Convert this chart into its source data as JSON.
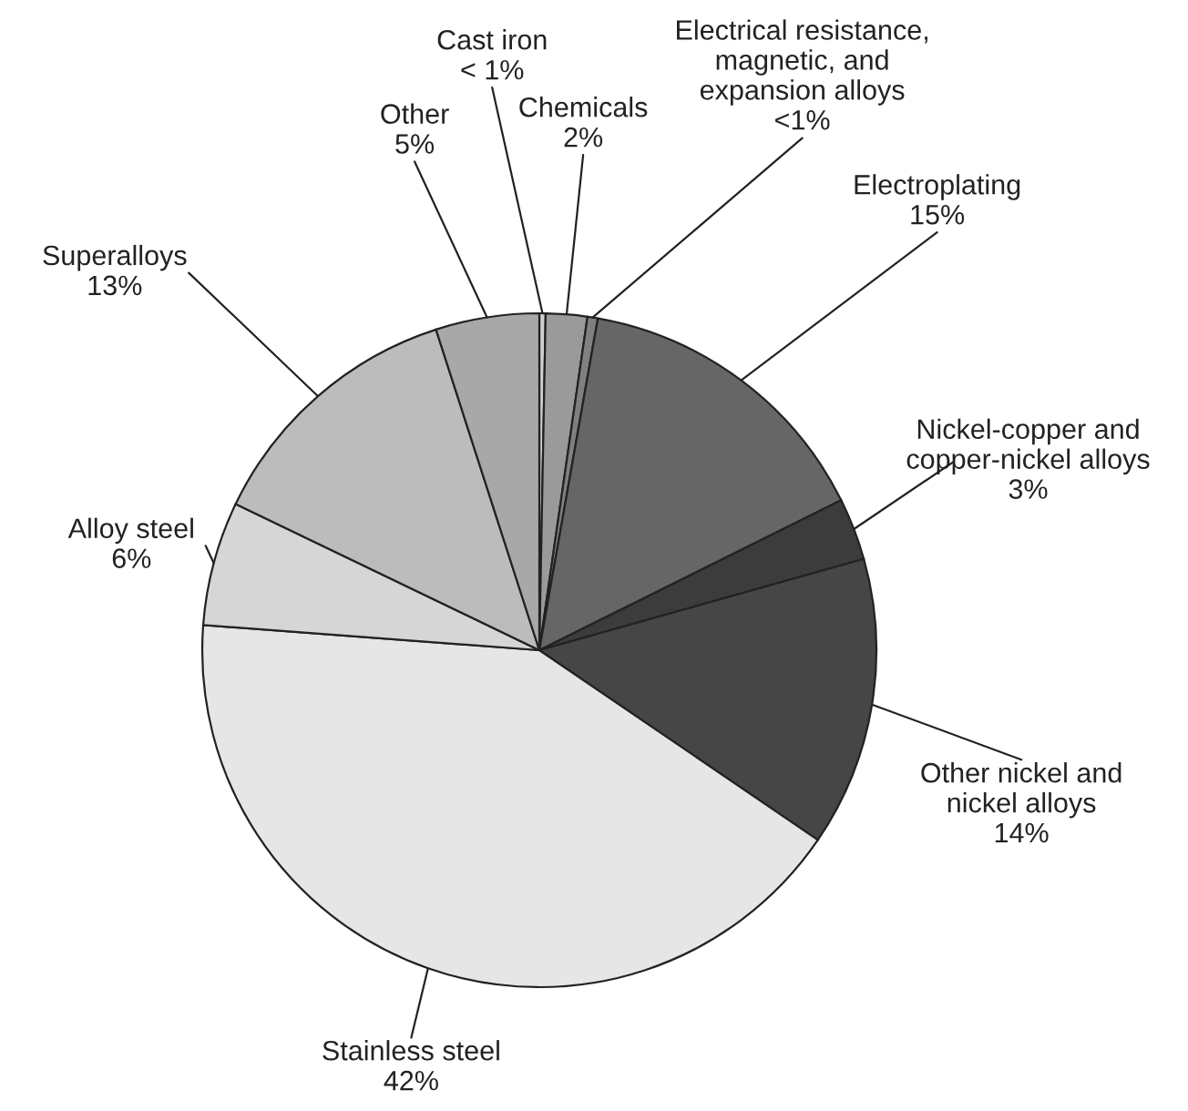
{
  "chart_data": {
    "type": "pie",
    "categories": [
      "Cast iron",
      "Chemicals",
      "Electrical resistance,\nmagnetic, and\nexpansion alloys",
      "Electroplating",
      "Nickel-copper and\ncopper-nickel alloys",
      "Other nickel and\nnickel alloys",
      "Stainless steel",
      "Alloy steel",
      "Superalloys",
      "Other"
    ],
    "values": [
      0.3,
      2,
      0.5,
      15,
      3,
      14,
      42,
      6,
      13,
      5
    ],
    "value_labels": [
      "< 1%",
      "2%",
      "<1%",
      "15%",
      "3%",
      "14%",
      "42%",
      "6%",
      "13%",
      "5%"
    ],
    "colors": [
      "#d0d0d0",
      "#9a9a9a",
      "#808080",
      "#666666",
      "#3c3c3c",
      "#464646",
      "#e6e6e6",
      "#d6d6d6",
      "#bcbcbc",
      "#a8a8a8"
    ],
    "legend": false
  }
}
